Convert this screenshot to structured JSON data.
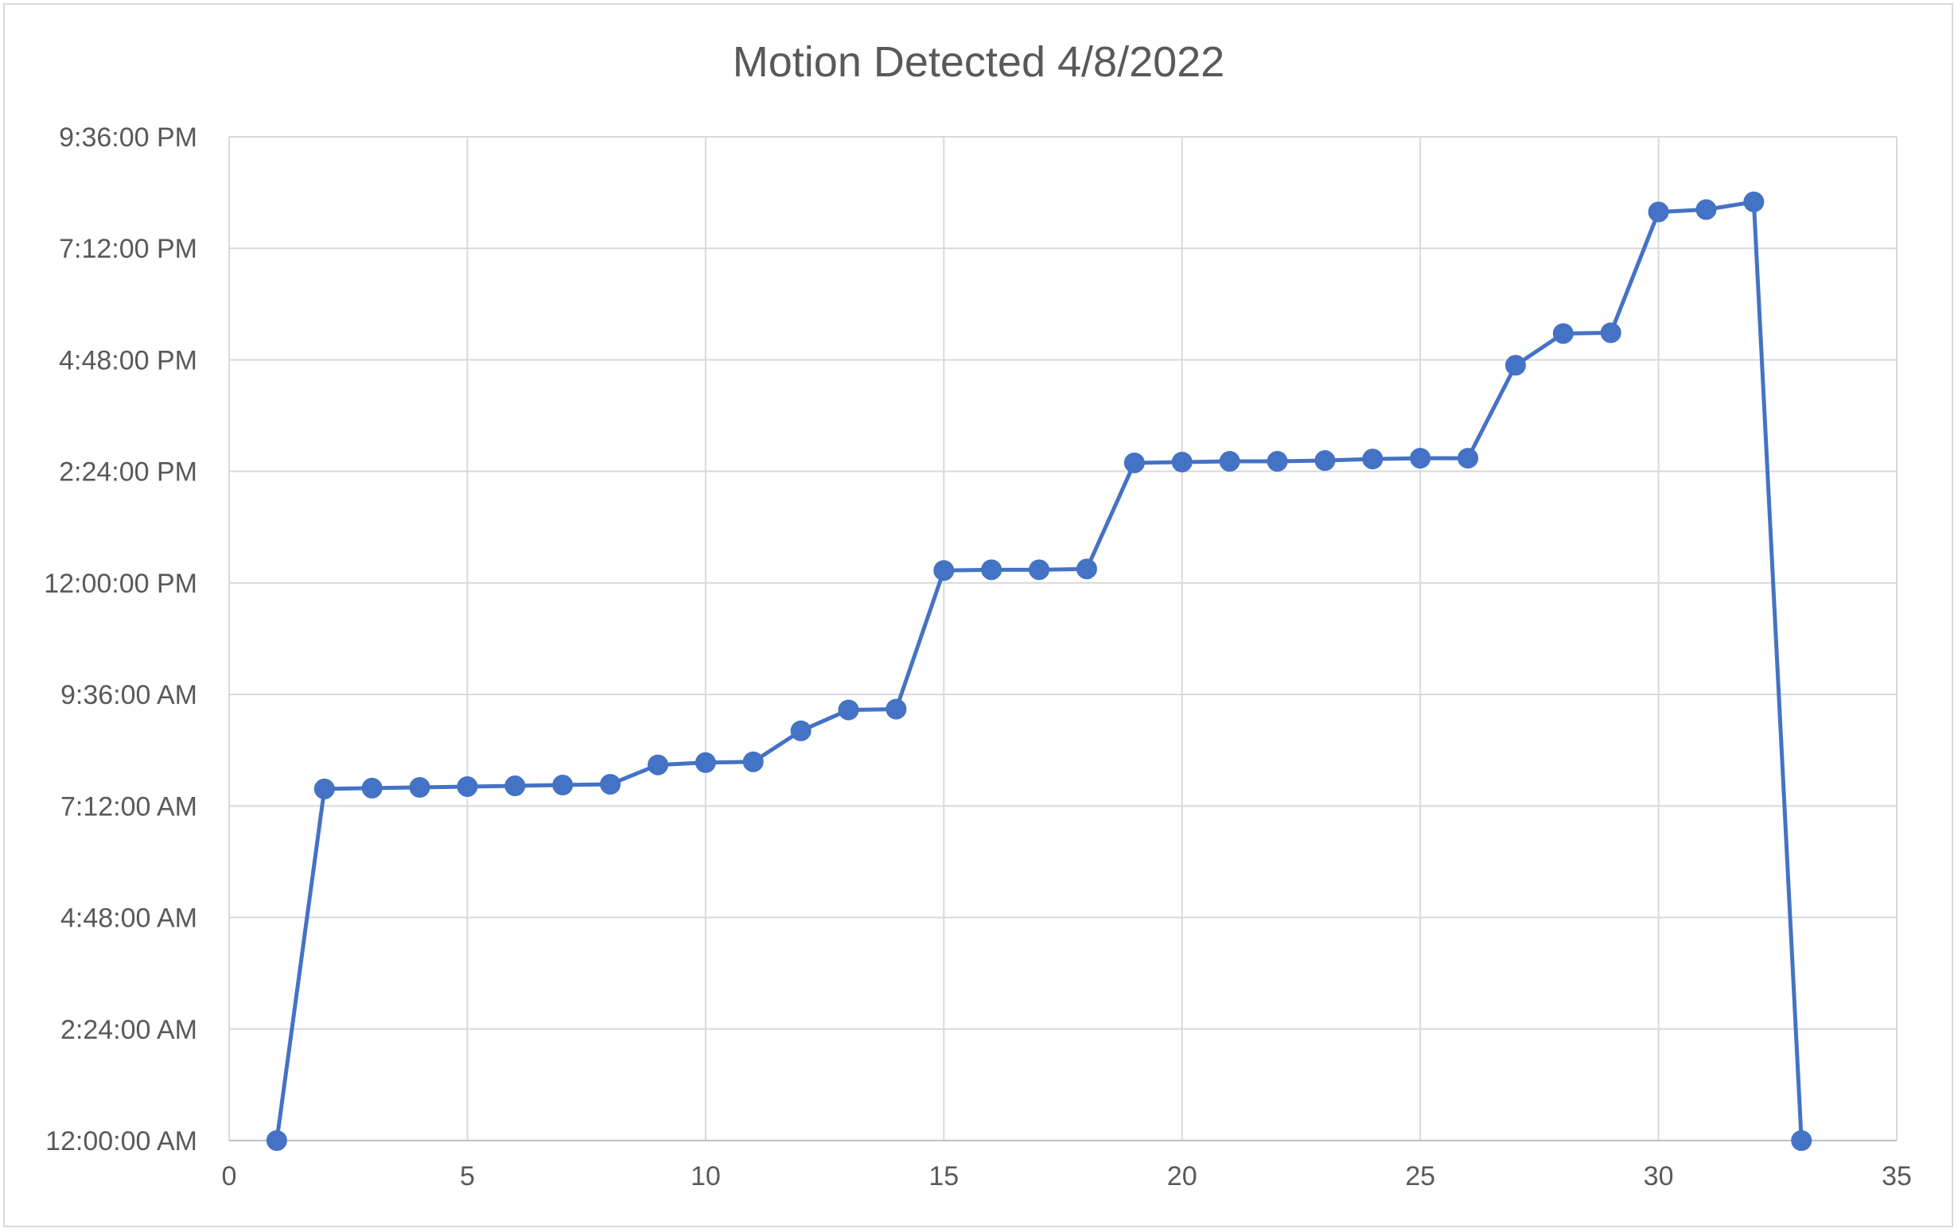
{
  "chart_data": {
    "type": "line",
    "title": "Motion Detected 4/8/2022",
    "xlabel": "",
    "ylabel": "",
    "xlim": [
      0,
      35
    ],
    "x_ticks": [
      "0",
      "5",
      "10",
      "15",
      "20",
      "25",
      "30",
      "35"
    ],
    "x_tick_values": [
      0,
      5,
      10,
      15,
      20,
      25,
      30,
      35
    ],
    "ylim": [
      "12:00:00 AM",
      "9:36:00 PM"
    ],
    "y_ticks": [
      "12:00:00 AM",
      "2:24:00 AM",
      "4:48:00 AM",
      "7:12:00 AM",
      "9:36:00 AM",
      "12:00:00 PM",
      "2:24:00 PM",
      "4:48:00 PM",
      "7:12:00 PM",
      "9:36:00 PM"
    ],
    "y_tick_values": [
      "12:00:00 AM",
      "2:24:00 AM",
      "4:48:00 AM",
      "7:12:00 AM",
      "9:36:00 AM",
      "12:00:00 PM",
      "2:24:00 PM",
      "4:48:00 PM",
      "7:12:00 PM",
      "9:36:00 PM"
    ],
    "grid": true,
    "legend": "none",
    "colors": {
      "series": "#4472c4",
      "grid": "#d9d9d9",
      "text": "#595959"
    },
    "series": [
      {
        "points": [
          {
            "x": 1,
            "y": "12:00:00 AM"
          },
          {
            "x": 2,
            "y": "7:34:00 AM"
          },
          {
            "x": 3,
            "y": "7:35:00 AM"
          },
          {
            "x": 4,
            "y": "7:36:00 AM"
          },
          {
            "x": 5,
            "y": "7:37:00 AM"
          },
          {
            "x": 6,
            "y": "7:38:00 AM"
          },
          {
            "x": 7,
            "y": "7:39:00 AM"
          },
          {
            "x": 8,
            "y": "7:40:00 AM"
          },
          {
            "x": 9,
            "y": "8:05:00 AM"
          },
          {
            "x": 10,
            "y": "8:08:00 AM"
          },
          {
            "x": 11,
            "y": "8:09:00 AM"
          },
          {
            "x": 12,
            "y": "8:49:00 AM"
          },
          {
            "x": 13,
            "y": "9:16:00 AM"
          },
          {
            "x": 14,
            "y": "9:17:00 AM"
          },
          {
            "x": 15,
            "y": "12:16:00 PM"
          },
          {
            "x": 16,
            "y": "12:17:00 PM"
          },
          {
            "x": 17,
            "y": "12:17:00 PM"
          },
          {
            "x": 18,
            "y": "12:18:00 PM"
          },
          {
            "x": 19,
            "y": "2:35:00 PM"
          },
          {
            "x": 20,
            "y": "2:36:00 PM"
          },
          {
            "x": 21,
            "y": "2:37:00 PM"
          },
          {
            "x": 22,
            "y": "2:37:00 PM"
          },
          {
            "x": 23,
            "y": "2:38:00 PM"
          },
          {
            "x": 24,
            "y": "2:40:00 PM"
          },
          {
            "x": 25,
            "y": "2:41:00 PM"
          },
          {
            "x": 26,
            "y": "2:41:00 PM"
          },
          {
            "x": 27,
            "y": "4:41:00 PM"
          },
          {
            "x": 28,
            "y": "5:22:00 PM"
          },
          {
            "x": 29,
            "y": "5:23:00 PM"
          },
          {
            "x": 30,
            "y": "7:59:00 PM"
          },
          {
            "x": 31,
            "y": "8:02:00 PM"
          },
          {
            "x": 32,
            "y": "8:12:00 PM"
          },
          {
            "x": 33,
            "y": "12:00:00 AM"
          }
        ]
      }
    ]
  }
}
